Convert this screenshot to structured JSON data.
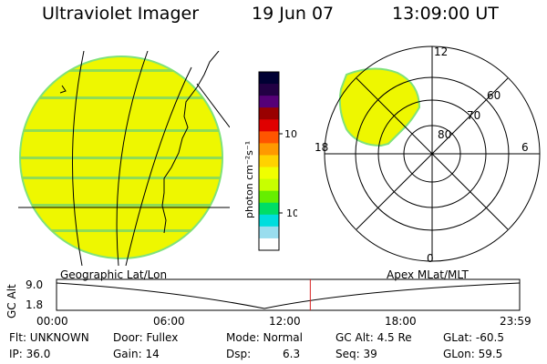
{
  "header": {
    "title": "Ultraviolet Imager",
    "date": "19 Jun 07",
    "time": "13:09:00 UT"
  },
  "colorbar": {
    "unit_label": "photon cm⁻²s⁻¹",
    "ticks": [
      "100",
      "10"
    ],
    "colors": [
      "#000033",
      "#220044",
      "#550077",
      "#990000",
      "#e00000",
      "#ff5500",
      "#ff9900",
      "#ffd200",
      "#f0ff00",
      "#c8ff00",
      "#66ee00",
      "#00dd66",
      "#00dddd",
      "#99ddee",
      "#ffffff"
    ]
  },
  "polar": {
    "labels": {
      "top": "12",
      "right": "6",
      "bottom": "0",
      "left": "18"
    },
    "rings": [
      "80",
      "70",
      "60"
    ]
  },
  "timeline": {
    "left_label": "Geographic Lat/Lon",
    "right_label": "Apex MLat/MLT",
    "axis_title": "GC Alt",
    "y_ticks": [
      "9.0",
      "1.8"
    ],
    "x_ticks": [
      "00:00",
      "06:00",
      "12:00",
      "18:00",
      "23:59"
    ],
    "current_time_hours": 13.15
  },
  "footer": {
    "flt": "Flt: UNKNOWN",
    "ip": "IP: 36.0",
    "door": "Door: Fullex",
    "gain": "Gain: 14",
    "mode": "Mode: Normal",
    "dsp_label": "Dsp:",
    "dsp_value": "6.3",
    "gc_alt": "GC Alt: 4.5 Re",
    "seq": "Seq: 39",
    "glat": "GLat: -60.5",
    "glon": "GLon: 59.5"
  },
  "theme": {
    "image_fill": "#eef700",
    "image_edge": "#7fe27a",
    "stripe": "#8fdd55",
    "marker": "#d82020"
  }
}
